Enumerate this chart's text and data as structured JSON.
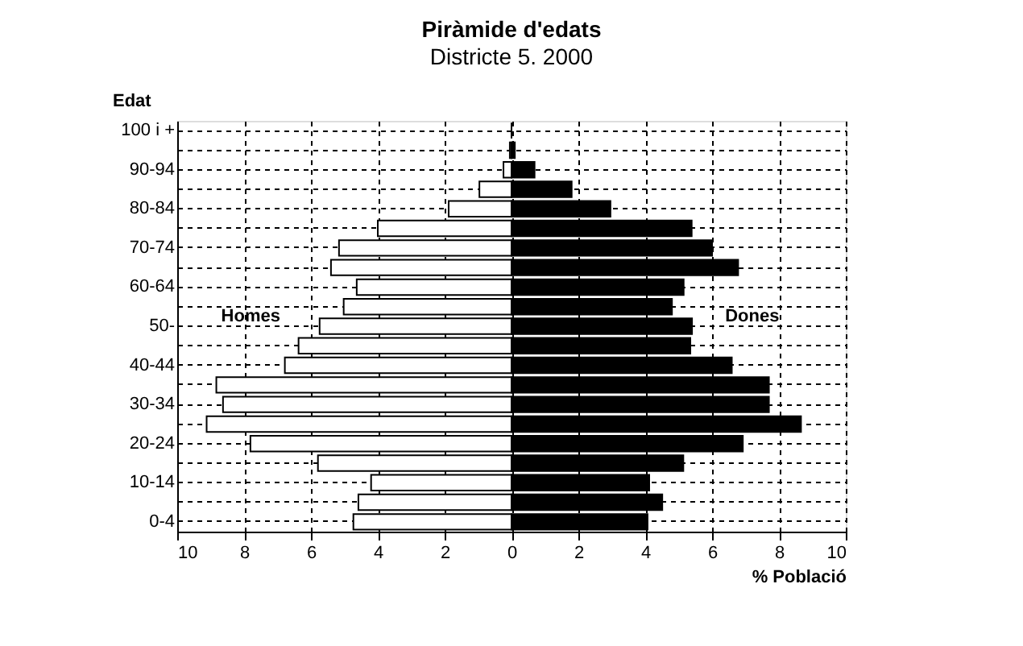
{
  "chart_data": {
    "type": "bar",
    "orientation": "horizontal",
    "title": "Piràmide d'edats",
    "subtitle": "Districte 5. 2000",
    "xlabel": "% Població",
    "ylabel": "Edat",
    "categories": [
      "100 i +",
      null,
      "90-94",
      null,
      "80-84",
      null,
      "70-74",
      null,
      "60-64",
      null,
      "50-",
      null,
      "40-44",
      null,
      "30-34",
      null,
      "20-24",
      null,
      "10-14",
      null,
      "0-4"
    ],
    "series": [
      {
        "name": "Homes",
        "color": "#ffffff",
        "values": [
          0,
          -0.05,
          -0.24,
          -0.96,
          -1.88,
          -4.0,
          -5.16,
          -5.4,
          -4.63,
          -5.02,
          -5.74,
          -6.37,
          -6.78,
          -8.83,
          -8.63,
          -9.12,
          -7.81,
          -5.79,
          -4.2,
          -4.58,
          -4.73
        ]
      },
      {
        "name": "Dones",
        "color": "#000000",
        "values": [
          0,
          0.1,
          0.69,
          1.8,
          2.96,
          5.39,
          6.0,
          6.78,
          5.15,
          4.8,
          5.4,
          5.35,
          6.59,
          7.7,
          7.7,
          8.66,
          6.92,
          5.14,
          4.12,
          4.51,
          4.07
        ]
      }
    ],
    "xlim": [
      -10,
      10
    ],
    "xticks": [
      {
        "value": -10,
        "label": "10"
      },
      {
        "value": -8,
        "label": "8"
      },
      {
        "value": -6,
        "label": "6"
      },
      {
        "value": -4,
        "label": "4"
      },
      {
        "value": -2,
        "label": "2"
      },
      0,
      2,
      4,
      6,
      8,
      10
    ],
    "grid": true,
    "stacked": true
  }
}
